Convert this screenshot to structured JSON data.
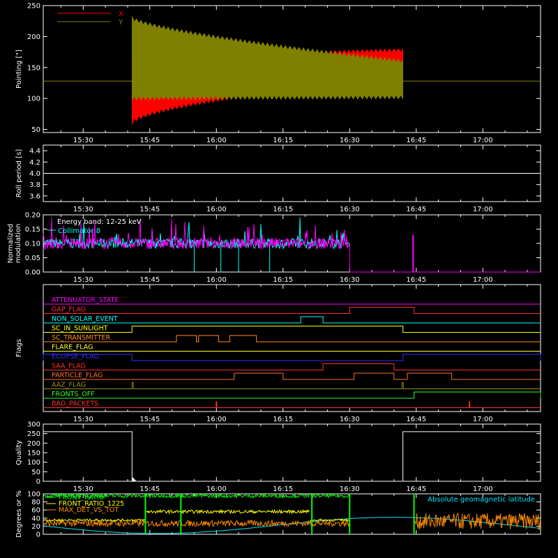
{
  "time_axis": {
    "ticks": [
      "15:30",
      "15:45",
      "16:00",
      "16:15",
      "16:30",
      "16:45",
      "17:00"
    ],
    "tick_minutes": [
      930,
      945,
      960,
      975,
      990,
      1005,
      1020
    ],
    "range_minutes": [
      921,
      1033
    ]
  },
  "chart_data": [
    {
      "type": "line",
      "ylabel": "Pointing [\"]",
      "ylim": [
        45,
        250
      ],
      "yticks": [
        "50",
        "100",
        "150",
        "200",
        "250"
      ],
      "ytick_values": [
        50,
        100,
        150,
        200,
        250
      ],
      "legend": {
        "position": "top-left"
      },
      "series": [
        {
          "name": "X",
          "color": "#ff0000",
          "band_start": 941,
          "band_end": 985,
          "band_end_value": [
            135,
            175
          ]
        },
        {
          "name": "Y",
          "color": "#808000",
          "band_start": 941,
          "band_end": 985,
          "band_end_value": [
            110,
            160
          ]
        }
      ],
      "baseline": {
        "value": 128,
        "color": "#808000"
      },
      "oscillation": {
        "start_minute": 941,
        "end_minute": 1002,
        "x_start_band": [
          60,
          160
        ],
        "y_start_band": [
          100,
          230
        ],
        "x_end_band": [
          135,
          178
        ],
        "y_end_band": [
          102,
          160
        ]
      }
    },
    {
      "type": "line",
      "ylabel": "Roll period [s]",
      "ylim": [
        3.5,
        4.5
      ],
      "yticks": [
        "3.6",
        "3.8",
        "4.0",
        "4.2",
        "4.4"
      ],
      "ytick_values": [
        3.6,
        3.8,
        4.0,
        4.2,
        4.4
      ],
      "series": [
        {
          "value": 4.0,
          "color": "#ffffff"
        }
      ]
    },
    {
      "type": "line",
      "ylabel": "Normalized modulation",
      "ylim": [
        0.0,
        0.2
      ],
      "yticks": [
        "0.00",
        "0.05",
        "0.10",
        "0.15",
        "0.20"
      ],
      "ytick_values": [
        0.0,
        0.05,
        0.1,
        0.15,
        0.2
      ],
      "annotations": [
        "Energy band: 12-25 keV",
        "Collimator 8"
      ],
      "series": [
        {
          "name": "Collimator 8",
          "color": "#00ffff",
          "start_minute": 921,
          "end_minute": 990,
          "mean": 0.1,
          "dips": [
            955,
            961,
            965,
            972
          ]
        },
        {
          "color": "#ff00ff",
          "start_minute": 921,
          "end_minute": 990,
          "mean": 0.1,
          "spike": 1004.3
        }
      ]
    },
    {
      "type": "line",
      "ylabel": "Flags",
      "flags": [
        {
          "name": "ATTENUATOR_STATE",
          "color": "#ff00ff",
          "on": []
        },
        {
          "name": "GAP_FLAG",
          "color": "#ff3030",
          "on": [
            [
              990,
              1004.5
            ]
          ]
        },
        {
          "name": "NON_SOLAR_EVENT",
          "color": "#00ffff",
          "on": [
            [
              979,
              984
            ]
          ]
        },
        {
          "name": "SC_IN_SUNLIGHT",
          "color": "#ffff00",
          "on": [
            [
              941,
              1002
            ]
          ]
        },
        {
          "name": "SC_TRANSMITTER",
          "color": "#ff8c1a",
          "on": [
            [
              951,
              955.5
            ],
            [
              956,
              960.5
            ],
            [
              963,
              969
            ]
          ]
        },
        {
          "name": "FLARE_FLAG",
          "color": "#ffff30",
          "on": []
        },
        {
          "name": "ECLIPSE_FLAG",
          "color": "#3030ff",
          "on": [
            [
              921,
              941
            ],
            [
              1002,
              1033
            ]
          ]
        },
        {
          "name": "SAA_FLAG",
          "color": "#ff3030",
          "on": [
            [
              984,
              1000
            ]
          ]
        },
        {
          "name": "PARTICLE_FLAG",
          "color": "#ff7030",
          "on": [
            [
              964,
              975
            ],
            [
              991,
              1000
            ],
            [
              1003,
              1013
            ]
          ]
        },
        {
          "name": "AAZ_FLAG",
          "color": "#909020",
          "on": [
            [
              941,
              941.3
            ],
            [
              1001.8,
              1002.1
            ]
          ]
        },
        {
          "name": "FRONTS_OFF",
          "color": "#30ff30",
          "on": [
            [
              1004.5,
              1033
            ]
          ]
        },
        {
          "name": "BAD_PACKETS",
          "color": "#ff3030",
          "on": [],
          "spikes": [
            960,
            1017
          ]
        }
      ]
    },
    {
      "type": "line",
      "ylabel": "Quality",
      "ylim": [
        0,
        300
      ],
      "yticks": [
        "0",
        "50",
        "100",
        "150",
        "200",
        "250",
        "300"
      ],
      "ytick_values": [
        0,
        50,
        100,
        150,
        200,
        250,
        300
      ],
      "series": [
        {
          "color": "#ffffff",
          "segments": [
            [
              921,
              941,
              260
            ],
            [
              1002,
              1033,
              260
            ]
          ],
          "low_value": 0
        }
      ]
    },
    {
      "type": "line",
      "ylabel": "Degrees or %",
      "ylim": [
        0,
        100
      ],
      "yticks": [
        "0",
        "20",
        "40",
        "60",
        "80",
        "100"
      ],
      "ytick_values": [
        0,
        20,
        40,
        60,
        80,
        100
      ],
      "annotation": "Absolute geomagnetic latitude",
      "series": [
        {
          "name": "FRONT_RATIO",
          "color": "#00ff00"
        },
        {
          "name": "FRONT_RATIO_1225",
          "color": "#ffff00"
        },
        {
          "name": "MAX_DET_VS_TOT",
          "color": "#ff8c00"
        },
        {
          "name": "Absolute geomagnetic latitude",
          "color": "#00e5ff"
        }
      ]
    }
  ]
}
